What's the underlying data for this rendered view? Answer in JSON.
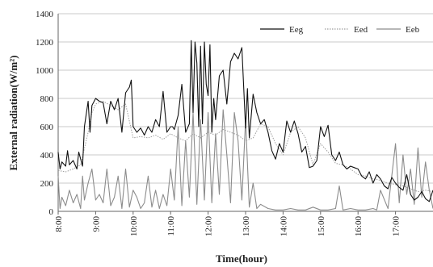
{
  "chart_data": {
    "type": "line",
    "xlabel": "Time(hour)",
    "ylabel": "External radiation(W/m²)",
    "ylim": [
      0,
      1400
    ],
    "yticks": [
      0,
      200,
      400,
      600,
      800,
      1000,
      1200,
      1400
    ],
    "xlim": [
      8.0,
      18.0
    ],
    "xticks": [
      "8:00",
      "9:00",
      "10:00",
      "11:00",
      "12:00",
      "13:00",
      "14:00",
      "15:00",
      "16:00",
      "17:00"
    ],
    "grid": true,
    "legend_position": "top-right",
    "series": [
      {
        "name": "Eeg",
        "color": "#111111",
        "style": "solid",
        "x": [
          8.0,
          8.05,
          8.1,
          8.2,
          8.25,
          8.3,
          8.4,
          8.5,
          8.55,
          8.65,
          8.7,
          8.8,
          8.85,
          8.9,
          9.0,
          9.1,
          9.2,
          9.3,
          9.4,
          9.5,
          9.6,
          9.7,
          9.8,
          9.9,
          9.95,
          10.0,
          10.1,
          10.2,
          10.3,
          10.4,
          10.5,
          10.6,
          10.7,
          10.8,
          10.9,
          11.0,
          11.05,
          11.1,
          11.2,
          11.3,
          11.4,
          11.5,
          11.55,
          11.6,
          11.65,
          11.7,
          11.75,
          11.8,
          11.85,
          11.9,
          11.95,
          12.0,
          12.05,
          12.1,
          12.15,
          12.2,
          12.3,
          12.4,
          12.5,
          12.6,
          12.7,
          12.8,
          12.9,
          13.0,
          13.05,
          13.1,
          13.2,
          13.3,
          13.4,
          13.5,
          13.6,
          13.7,
          13.8,
          13.9,
          14.0,
          14.1,
          14.2,
          14.3,
          14.4,
          14.5,
          14.6,
          14.7,
          14.8,
          14.9,
          15.0,
          15.1,
          15.2,
          15.3,
          15.4,
          15.5,
          15.6,
          15.7,
          15.8,
          15.9,
          16.0,
          16.1,
          16.2,
          16.3,
          16.4,
          16.5,
          16.6,
          16.7,
          16.8,
          16.9,
          17.0,
          17.1,
          17.2,
          17.3,
          17.4,
          17.5,
          17.6,
          17.7,
          17.8,
          17.9,
          18.0
        ],
        "y": [
          420,
          300,
          350,
          320,
          430,
          330,
          360,
          300,
          420,
          320,
          600,
          780,
          560,
          750,
          800,
          780,
          770,
          620,
          780,
          720,
          800,
          560,
          840,
          880,
          930,
          600,
          560,
          590,
          540,
          600,
          560,
          650,
          600,
          850,
          560,
          600,
          600,
          580,
          680,
          900,
          560,
          620,
          1210,
          700,
          1200,
          1050,
          600,
          1170,
          620,
          1200,
          900,
          820,
          1180,
          560,
          800,
          650,
          960,
          1000,
          760,
          1060,
          1120,
          1080,
          1160,
          590,
          870,
          520,
          830,
          700,
          620,
          650,
          560,
          430,
          370,
          480,
          420,
          640,
          560,
          640,
          550,
          420,
          460,
          310,
          320,
          360,
          600,
          530,
          610,
          400,
          360,
          420,
          330,
          300,
          320,
          310,
          300,
          250,
          230,
          280,
          200,
          260,
          230,
          180,
          160,
          240,
          200,
          170,
          150,
          260,
          120,
          80,
          100,
          140,
          90,
          70,
          150
        ]
      },
      {
        "name": "Eed",
        "color": "#9e9e9e",
        "style": "dotted",
        "x": [
          8.0,
          8.2,
          8.4,
          8.6,
          8.8,
          8.9,
          9.0,
          9.2,
          9.4,
          9.6,
          9.8,
          10.0,
          10.2,
          10.4,
          10.6,
          10.8,
          11.0,
          11.2,
          11.4,
          11.6,
          11.8,
          12.0,
          12.2,
          12.4,
          12.6,
          12.8,
          13.0,
          13.2,
          13.4,
          13.6,
          13.8,
          14.0,
          14.2,
          14.4,
          14.6,
          14.8,
          15.0,
          15.2,
          15.4,
          15.6,
          15.8,
          16.0,
          16.2,
          16.4,
          16.6,
          16.8,
          17.0,
          17.2,
          17.4,
          17.6,
          17.8,
          18.0
        ],
        "y": [
          290,
          280,
          300,
          330,
          560,
          700,
          760,
          780,
          750,
          720,
          760,
          520,
          530,
          520,
          540,
          510,
          550,
          520,
          500,
          550,
          520,
          560,
          540,
          580,
          560,
          540,
          500,
          520,
          620,
          600,
          480,
          400,
          560,
          600,
          520,
          330,
          480,
          420,
          340,
          330,
          300,
          260,
          250,
          230,
          220,
          200,
          190,
          180,
          160,
          140,
          150,
          140
        ]
      },
      {
        "name": "Eeb",
        "color": "#8c8c8c",
        "style": "solid",
        "x": [
          8.0,
          8.05,
          8.1,
          8.2,
          8.3,
          8.4,
          8.5,
          8.6,
          8.65,
          8.7,
          8.8,
          8.9,
          9.0,
          9.1,
          9.2,
          9.3,
          9.4,
          9.5,
          9.6,
          9.7,
          9.8,
          9.9,
          10.0,
          10.1,
          10.2,
          10.3,
          10.4,
          10.5,
          10.6,
          10.7,
          10.8,
          10.9,
          11.0,
          11.1,
          11.2,
          11.3,
          11.4,
          11.5,
          11.6,
          11.7,
          11.8,
          11.9,
          12.0,
          12.1,
          12.2,
          12.3,
          12.4,
          12.5,
          12.6,
          12.7,
          12.8,
          12.9,
          13.0,
          13.1,
          13.2,
          13.3,
          13.4,
          13.6,
          13.8,
          14.0,
          14.2,
          14.4,
          14.6,
          14.8,
          15.0,
          15.2,
          15.4,
          15.5,
          15.6,
          15.8,
          16.0,
          16.2,
          16.4,
          16.5,
          16.6,
          16.8,
          17.0,
          17.1,
          17.2,
          17.3,
          17.4,
          17.5,
          17.6,
          17.7,
          17.8,
          17.9,
          18.0
        ],
        "y": [
          250,
          20,
          100,
          40,
          150,
          60,
          120,
          20,
          250,
          80,
          200,
          300,
          80,
          120,
          60,
          300,
          40,
          100,
          250,
          20,
          300,
          30,
          150,
          100,
          20,
          60,
          250,
          30,
          150,
          20,
          120,
          40,
          300,
          80,
          600,
          40,
          500,
          100,
          700,
          50,
          650,
          80,
          700,
          60,
          550,
          120,
          720,
          400,
          60,
          700,
          500,
          80,
          650,
          30,
          200,
          20,
          50,
          20,
          10,
          10,
          20,
          10,
          10,
          30,
          10,
          10,
          20,
          180,
          10,
          20,
          10,
          10,
          20,
          10,
          150,
          20,
          480,
          60,
          400,
          120,
          300,
          50,
          450,
          100,
          350,
          150,
          20
        ]
      }
    ]
  }
}
